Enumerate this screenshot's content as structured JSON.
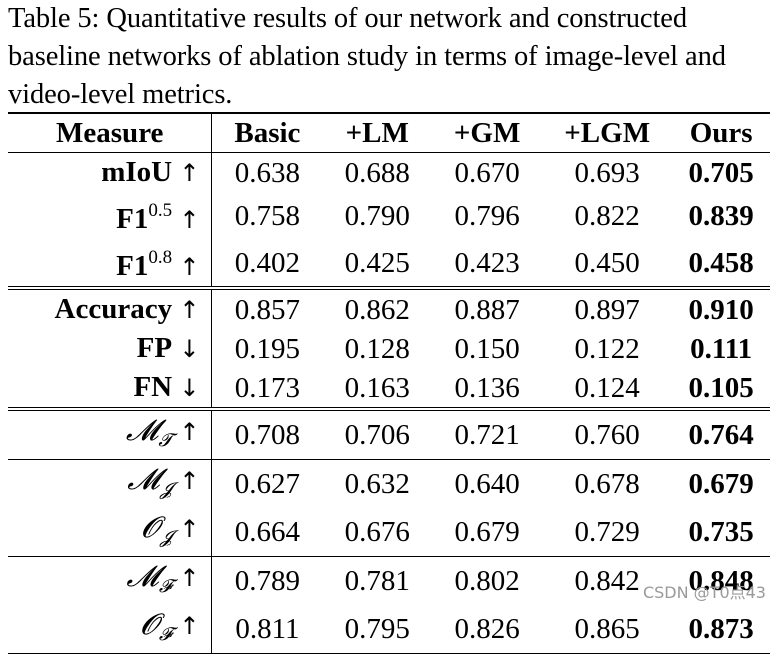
{
  "caption": "Table 5: Quantitative results of our network and constructed baseline networks of ablation study in terms of image-level and video-level metrics.",
  "table": {
    "headers": [
      "Measure",
      "Basic",
      "+LM",
      "+GM",
      "+LGM",
      "Ours"
    ],
    "rows": [
      {
        "measure": "mIoU",
        "sup": "",
        "sub": "",
        "arrow": "↑",
        "values": [
          "0.638",
          "0.688",
          "0.670",
          "0.693",
          "0.705"
        ]
      },
      {
        "measure": "F1",
        "sup": "0.5",
        "sub": "",
        "arrow": "↑",
        "values": [
          "0.758",
          "0.790",
          "0.796",
          "0.822",
          "0.839"
        ]
      },
      {
        "measure": "F1",
        "sup": "0.8",
        "sub": "",
        "arrow": "↑",
        "values": [
          "0.402",
          "0.425",
          "0.423",
          "0.450",
          "0.458"
        ]
      },
      {
        "measure": "Accuracy",
        "sup": "",
        "sub": "",
        "arrow": "↑",
        "values": [
          "0.857",
          "0.862",
          "0.887",
          "0.897",
          "0.910"
        ]
      },
      {
        "measure": "FP",
        "sup": "",
        "sub": "",
        "arrow": "↓",
        "values": [
          "0.195",
          "0.128",
          "0.150",
          "0.122",
          "0.111"
        ]
      },
      {
        "measure": "FN",
        "sup": "",
        "sub": "",
        "arrow": "↓",
        "values": [
          "0.173",
          "0.163",
          "0.136",
          "0.124",
          "0.105"
        ]
      },
      {
        "measure": "𝓜",
        "sup": "",
        "sub": "𝓣",
        "arrow": "↑",
        "values": [
          "0.708",
          "0.706",
          "0.721",
          "0.760",
          "0.764"
        ]
      },
      {
        "measure": "𝓜",
        "sup": "",
        "sub": "𝓙",
        "arrow": "↑",
        "values": [
          "0.627",
          "0.632",
          "0.640",
          "0.678",
          "0.679"
        ]
      },
      {
        "measure": "𝓞",
        "sup": "",
        "sub": "𝓙",
        "arrow": "↑",
        "values": [
          "0.664",
          "0.676",
          "0.679",
          "0.729",
          "0.735"
        ]
      },
      {
        "measure": "𝓜",
        "sup": "",
        "sub": "𝓕",
        "arrow": "↑",
        "values": [
          "0.789",
          "0.781",
          "0.802",
          "0.842",
          "0.848"
        ]
      },
      {
        "measure": "𝓞",
        "sup": "",
        "sub": "𝓕",
        "arrow": "↑",
        "values": [
          "0.811",
          "0.795",
          "0.826",
          "0.865",
          "0.873"
        ]
      }
    ]
  },
  "watermark": "CSDN @T0点43"
}
